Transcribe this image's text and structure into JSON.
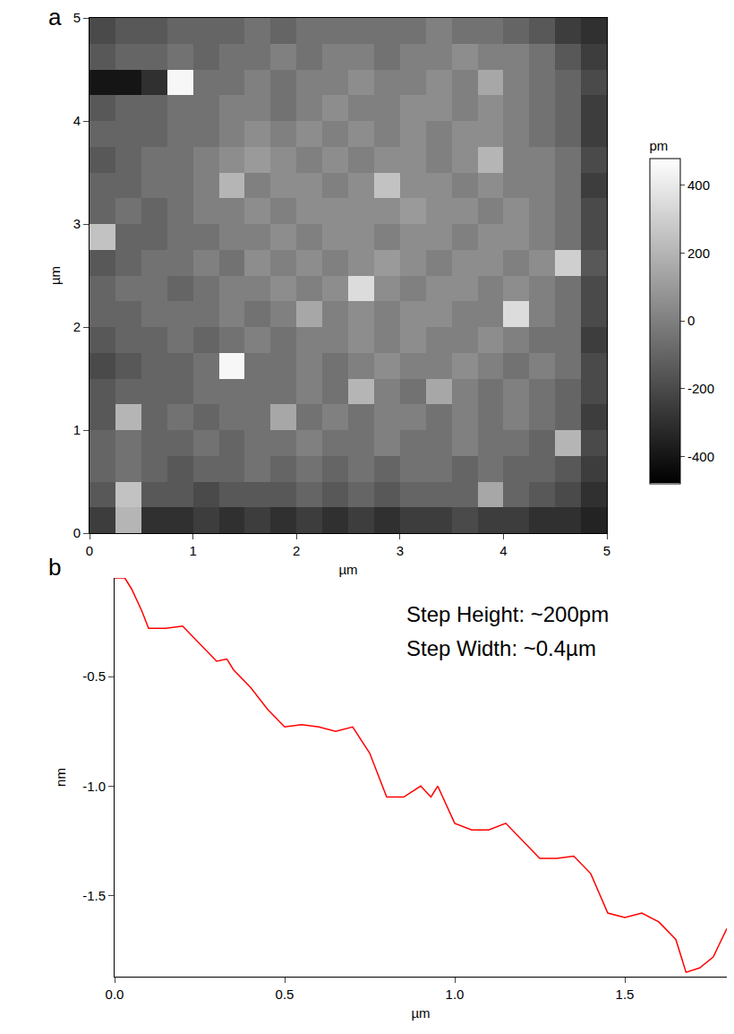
{
  "chart_data": [
    {
      "type": "heatmap",
      "panel_label": "a",
      "x_label": "µm",
      "y_label": "µm",
      "x": [
        0.125,
        0.375,
        0.625,
        0.875,
        1.125,
        1.375,
        1.625,
        1.875,
        2.125,
        2.375,
        2.625,
        2.875,
        3.125,
        3.375,
        3.625,
        3.875,
        4.125,
        4.375,
        4.625,
        4.875
      ],
      "y": [
        0.125,
        0.375,
        0.625,
        0.875,
        1.125,
        1.375,
        1.625,
        1.875,
        2.125,
        2.375,
        2.625,
        2.875,
        3.125,
        3.375,
        3.625,
        3.875,
        4.125,
        4.375,
        4.625,
        4.875
      ],
      "cells": [
        [
          -250,
          200,
          -300,
          -300,
          -250,
          -300,
          -250,
          -300,
          -250,
          -300,
          -250,
          -300,
          -250,
          -250,
          -200,
          -250,
          -250,
          -300,
          -300,
          -350
        ],
        [
          -150,
          250,
          -150,
          -150,
          -200,
          -150,
          -150,
          -150,
          -100,
          -150,
          -100,
          -150,
          -100,
          -100,
          -100,
          150,
          -100,
          -150,
          -200,
          -300
        ],
        [
          -100,
          -50,
          -100,
          -150,
          -100,
          -100,
          -50,
          -100,
          -50,
          -100,
          -50,
          -100,
          -50,
          -50,
          -100,
          -50,
          -100,
          -100,
          -150,
          -250
        ],
        [
          -100,
          -50,
          -100,
          -100,
          -50,
          -100,
          -50,
          -50,
          0,
          -50,
          -50,
          0,
          -50,
          -50,
          0,
          -50,
          -50,
          -100,
          200,
          -200
        ],
        [
          -150,
          200,
          -100,
          -50,
          -100,
          -50,
          -50,
          150,
          -50,
          0,
          -50,
          0,
          0,
          -50,
          0,
          -50,
          0,
          -50,
          -100,
          -250
        ],
        [
          -150,
          -100,
          -100,
          -100,
          -50,
          -50,
          -50,
          -50,
          0,
          -50,
          200,
          0,
          -50,
          150,
          0,
          -50,
          0,
          -50,
          -100,
          -200
        ],
        [
          -200,
          -150,
          -100,
          -100,
          -50,
          450,
          -50,
          -50,
          0,
          -50,
          0,
          50,
          0,
          0,
          50,
          0,
          -50,
          0,
          -50,
          -200
        ],
        [
          -150,
          -100,
          -100,
          -50,
          -100,
          -50,
          0,
          -50,
          0,
          0,
          50,
          0,
          50,
          0,
          0,
          50,
          0,
          -50,
          -50,
          -250
        ],
        [
          -100,
          -100,
          -50,
          -50,
          -50,
          0,
          -50,
          0,
          150,
          0,
          50,
          0,
          50,
          50,
          0,
          0,
          350,
          0,
          -50,
          -200
        ],
        [
          -100,
          -50,
          -50,
          -100,
          -50,
          0,
          0,
          50,
          0,
          50,
          350,
          50,
          0,
          50,
          50,
          0,
          50,
          0,
          -50,
          -200
        ],
        [
          -150,
          -100,
          -50,
          -50,
          0,
          -50,
          50,
          0,
          50,
          0,
          50,
          100,
          50,
          0,
          50,
          50,
          0,
          50,
          300,
          -150
        ],
        [
          250,
          -100,
          -100,
          -50,
          -50,
          0,
          0,
          50,
          0,
          50,
          50,
          0,
          50,
          50,
          0,
          50,
          50,
          0,
          -50,
          -200
        ],
        [
          -100,
          -50,
          -100,
          -50,
          0,
          0,
          50,
          0,
          50,
          50,
          50,
          50,
          100,
          50,
          50,
          0,
          50,
          0,
          -50,
          -200
        ],
        [
          -100,
          -100,
          -50,
          -50,
          0,
          200,
          0,
          50,
          50,
          0,
          50,
          250,
          50,
          50,
          0,
          50,
          0,
          0,
          -50,
          -250
        ],
        [
          -150,
          -100,
          -50,
          -50,
          0,
          50,
          100,
          50,
          0,
          50,
          0,
          50,
          50,
          0,
          50,
          200,
          0,
          0,
          -50,
          -200
        ],
        [
          -100,
          -100,
          -100,
          -50,
          -50,
          0,
          50,
          0,
          50,
          0,
          50,
          0,
          50,
          0,
          50,
          50,
          0,
          -50,
          -100,
          -250
        ],
        [
          -150,
          -100,
          -100,
          -50,
          -50,
          0,
          0,
          -50,
          0,
          50,
          0,
          0,
          50,
          50,
          0,
          50,
          0,
          -50,
          -100,
          -250
        ],
        [
          -400,
          -400,
          -300,
          450,
          -50,
          -50,
          0,
          -50,
          0,
          0,
          50,
          0,
          0,
          50,
          0,
          150,
          0,
          -50,
          -100,
          -200
        ],
        [
          -150,
          -100,
          -100,
          -50,
          -100,
          -50,
          -50,
          0,
          -50,
          0,
          0,
          -50,
          0,
          0,
          50,
          0,
          0,
          -50,
          -150,
          -250
        ],
        [
          -200,
          -150,
          -150,
          -100,
          -100,
          -100,
          -50,
          -100,
          -50,
          -50,
          -50,
          -50,
          -50,
          0,
          -50,
          -50,
          -100,
          -150,
          -250,
          -300
        ]
      ],
      "xlim": [
        0,
        5
      ],
      "ylim": [
        0,
        5
      ],
      "xticks": [
        0,
        1,
        2,
        3,
        4,
        5
      ],
      "yticks": [
        0,
        1,
        2,
        3,
        4,
        5
      ],
      "colorbar": {
        "title": "pm",
        "range": [
          -480,
          480
        ],
        "ticks": [
          -400,
          -200,
          0,
          200,
          400
        ]
      }
    },
    {
      "type": "line",
      "panel_label": "b",
      "x_label": "µm",
      "y_label": "nm",
      "color": "#ff0000",
      "x": [
        0,
        0.03,
        0.05,
        0.08,
        0.1,
        0.15,
        0.2,
        0.25,
        0.3,
        0.33,
        0.35,
        0.4,
        0.45,
        0.5,
        0.55,
        0.6,
        0.65,
        0.7,
        0.75,
        0.8,
        0.85,
        0.9,
        0.93,
        0.95,
        1.0,
        1.05,
        1.1,
        1.15,
        1.2,
        1.25,
        1.3,
        1.35,
        1.4,
        1.45,
        1.5,
        1.55,
        1.6,
        1.65,
        1.68,
        1.72,
        1.76,
        1.8
      ],
      "values": [
        -0.05,
        -0.05,
        -0.1,
        -0.2,
        -0.28,
        -0.28,
        -0.27,
        -0.35,
        -0.43,
        -0.42,
        -0.47,
        -0.55,
        -0.65,
        -0.73,
        -0.72,
        -0.73,
        -0.75,
        -0.73,
        -0.85,
        -1.05,
        -1.05,
        -1.0,
        -1.05,
        -1.0,
        -1.17,
        -1.2,
        -1.2,
        -1.17,
        -1.25,
        -1.33,
        -1.33,
        -1.32,
        -1.4,
        -1.58,
        -1.6,
        -1.58,
        -1.62,
        -1.7,
        -1.85,
        -1.83,
        -1.78,
        -1.65
      ],
      "xlim": [
        0,
        1.8
      ],
      "ylim": [
        -1.87,
        -0.05
      ],
      "xticks": [
        {
          "value": 0,
          "label": "0.0"
        },
        {
          "value": 0.5,
          "label": "0.5"
        },
        {
          "value": 1,
          "label": "1.0"
        },
        {
          "value": 1.5,
          "label": "1.5"
        }
      ],
      "yticks": [
        {
          "value": -0.5,
          "label": "-0.5"
        },
        {
          "value": -1,
          "label": "-1.0"
        },
        {
          "value": -1.5,
          "label": "-1.5"
        }
      ],
      "annotations": [
        "Step Height: ~200pm",
        "Step Width: ~0.4µm"
      ]
    }
  ]
}
